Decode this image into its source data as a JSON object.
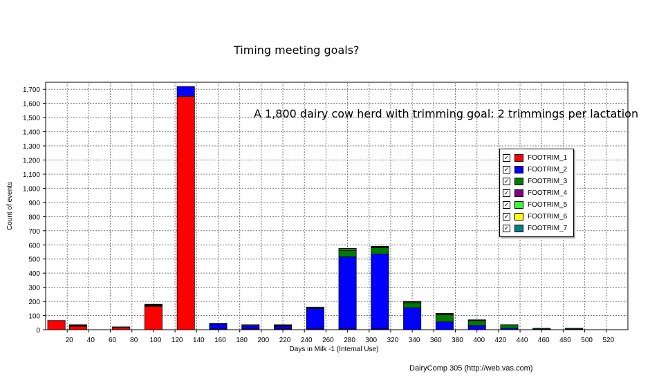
{
  "title": "Timing meeting goals?",
  "footer": "DairyComp 305    (http://web.vas.com)",
  "legend": [
    {
      "label": "FOOTRIM_1",
      "color": "#ff0000"
    },
    {
      "label": "FOOTRIM_2",
      "color": "#0000ff"
    },
    {
      "label": "FOOTRIM_3",
      "color": "#007a00"
    },
    {
      "label": "FOOTRIM_4",
      "color": "#800080"
    },
    {
      "label": "FOOTRIM_5",
      "color": "#33ff33"
    },
    {
      "label": "FOOTRIM_6",
      "color": "#ffff00"
    },
    {
      "label": "FOOTRIM_7",
      "color": "#008080"
    }
  ],
  "chart_data": {
    "type": "bar",
    "stacked": true,
    "subtitle": "A 1,800 dairy cow herd with trimming goal: 2 trimmings per lactation",
    "xlabel": "Days in Milk -1 (Internal Use)",
    "ylabel": "Count of events",
    "ylim": [
      0,
      1750
    ],
    "yticks": [
      0,
      100,
      200,
      300,
      400,
      500,
      600,
      700,
      800,
      900,
      1000,
      1100,
      1200,
      1300,
      1400,
      1500,
      1600,
      1700
    ],
    "ytick_labels": [
      "0",
      "100",
      "200",
      "300",
      "400",
      "500",
      "600",
      "700",
      "800",
      "900",
      "1,000",
      "1,100",
      "1,200",
      "1,300",
      "1,400",
      "1,500",
      "1,600",
      "1,700"
    ],
    "xticks": [
      20,
      40,
      60,
      80,
      100,
      120,
      140,
      160,
      180,
      200,
      220,
      240,
      260,
      280,
      300,
      320,
      340,
      360,
      380,
      400,
      420,
      440,
      460,
      480,
      500,
      520
    ],
    "xlim": [
      0,
      540
    ],
    "grid": true,
    "legend_position": "right",
    "categories": [
      10,
      30,
      70,
      100,
      130,
      160,
      190,
      220,
      250,
      280,
      310,
      340,
      370,
      400,
      430,
      460,
      490,
      520
    ],
    "series": [
      {
        "name": "FOOTRIM_1",
        "color": "#ff0000",
        "values": [
          65,
          25,
          15,
          165,
          1650,
          5,
          5,
          5,
          5,
          5,
          5,
          0,
          0,
          0,
          0,
          0,
          0,
          0
        ]
      },
      {
        "name": "FOOTRIM_2",
        "color": "#0000ff",
        "values": [
          0,
          0,
          0,
          0,
          70,
          35,
          25,
          20,
          145,
          510,
          530,
          155,
          55,
          30,
          10,
          5,
          5,
          0
        ]
      },
      {
        "name": "FOOTRIM_3",
        "color": "#007a00",
        "values": [
          0,
          0,
          0,
          0,
          0,
          0,
          0,
          0,
          5,
          45,
          45,
          35,
          50,
          35,
          25,
          5,
          5,
          0
        ]
      },
      {
        "name": "FOOTRIM_4",
        "color": "#800080",
        "values": [
          0,
          0,
          0,
          0,
          0,
          0,
          0,
          0,
          0,
          0,
          0,
          0,
          0,
          0,
          0,
          0,
          0,
          0
        ]
      },
      {
        "name": "FOOTRIM_5",
        "color": "#33ff33",
        "values": [
          0,
          0,
          5,
          0,
          0,
          0,
          0,
          0,
          5,
          10,
          5,
          5,
          5,
          0,
          0,
          0,
          0,
          0
        ]
      },
      {
        "name": "FOOTRIM_6",
        "color": "#ffff00",
        "values": [
          0,
          0,
          0,
          0,
          0,
          0,
          5,
          0,
          0,
          0,
          0,
          0,
          0,
          0,
          0,
          0,
          0,
          0
        ]
      },
      {
        "name": "FOOTRIM_7",
        "color": "#008080",
        "values": [
          0,
          0,
          0,
          0,
          0,
          0,
          0,
          0,
          0,
          0,
          0,
          0,
          0,
          0,
          0,
          0,
          0,
          0
        ]
      },
      {
        "name": "",
        "color": "#000000",
        "values": [
          0,
          10,
          0,
          15,
          0,
          5,
          0,
          10,
          0,
          5,
          5,
          5,
          5,
          5,
          0,
          0,
          0,
          0
        ]
      }
    ]
  }
}
